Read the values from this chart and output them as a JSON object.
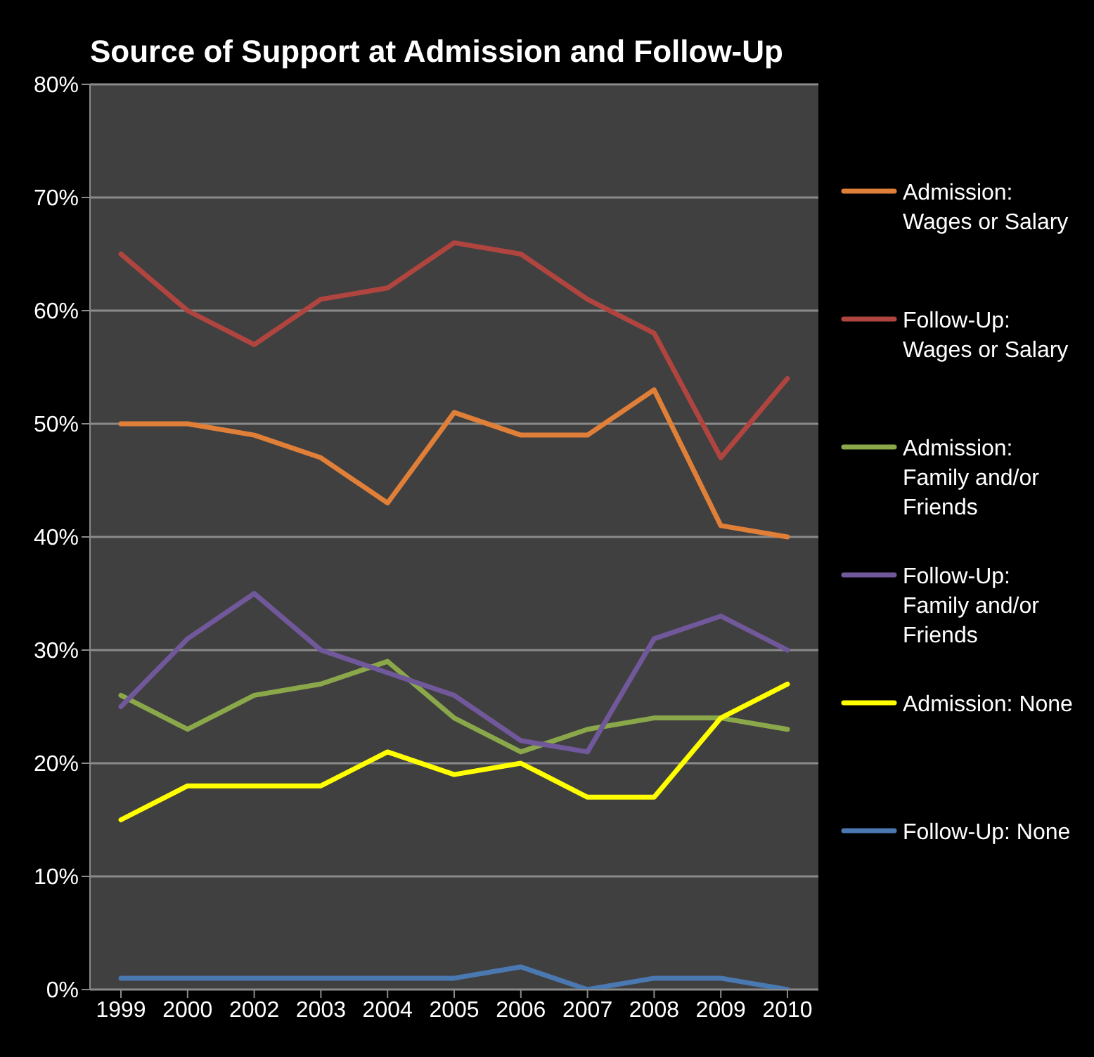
{
  "chart_data": {
    "type": "line",
    "title": "Source of Support at Admission and Follow-Up",
    "categories": [
      "1999",
      "2000",
      "2002",
      "2003",
      "2004",
      "2005",
      "2006",
      "2007",
      "2008",
      "2009",
      "2010"
    ],
    "series": [
      {
        "name": "Admission: Wages or Salary",
        "color": "#e07f38",
        "values": [
          50,
          50,
          49,
          47,
          43,
          51,
          49,
          49,
          53,
          41,
          40
        ]
      },
      {
        "name": "Follow-Up: Wages or Salary",
        "color": "#b04540",
        "values": [
          65,
          60,
          57,
          61,
          62,
          66,
          65,
          61,
          58,
          47,
          54
        ]
      },
      {
        "name": "Admission: Family and/or Friends",
        "color": "#8aa84a",
        "values": [
          26,
          23,
          26,
          27,
          29,
          24,
          21,
          23,
          24,
          24,
          23
        ]
      },
      {
        "name": "Follow-Up: Family and/or Friends",
        "color": "#70589a",
        "values": [
          25,
          31,
          35,
          30,
          28,
          26,
          22,
          21,
          31,
          33,
          30
        ]
      },
      {
        "name": "Admission: None",
        "color": "#ffff00",
        "values": [
          15,
          18,
          18,
          18,
          21,
          19,
          20,
          17,
          17,
          24,
          27
        ]
      },
      {
        "name": "Follow-Up: None",
        "color": "#4a78b0",
        "values": [
          1,
          1,
          1,
          1,
          1,
          1,
          2,
          0,
          1,
          1,
          0
        ]
      }
    ],
    "ylim": [
      0,
      80
    ],
    "yticks": [
      {
        "value": 0,
        "label": "0%"
      },
      {
        "value": 10,
        "label": "10%"
      },
      {
        "value": 20,
        "label": "20%"
      },
      {
        "value": 30,
        "label": "30%"
      },
      {
        "value": 40,
        "label": "40%"
      },
      {
        "value": 50,
        "label": "50%"
      },
      {
        "value": 60,
        "label": "60%"
      },
      {
        "value": 70,
        "label": "70%"
      },
      {
        "value": 80,
        "label": "80%"
      }
    ],
    "grid": "y",
    "legend": "right",
    "marker": "none",
    "line_style": "solid"
  }
}
